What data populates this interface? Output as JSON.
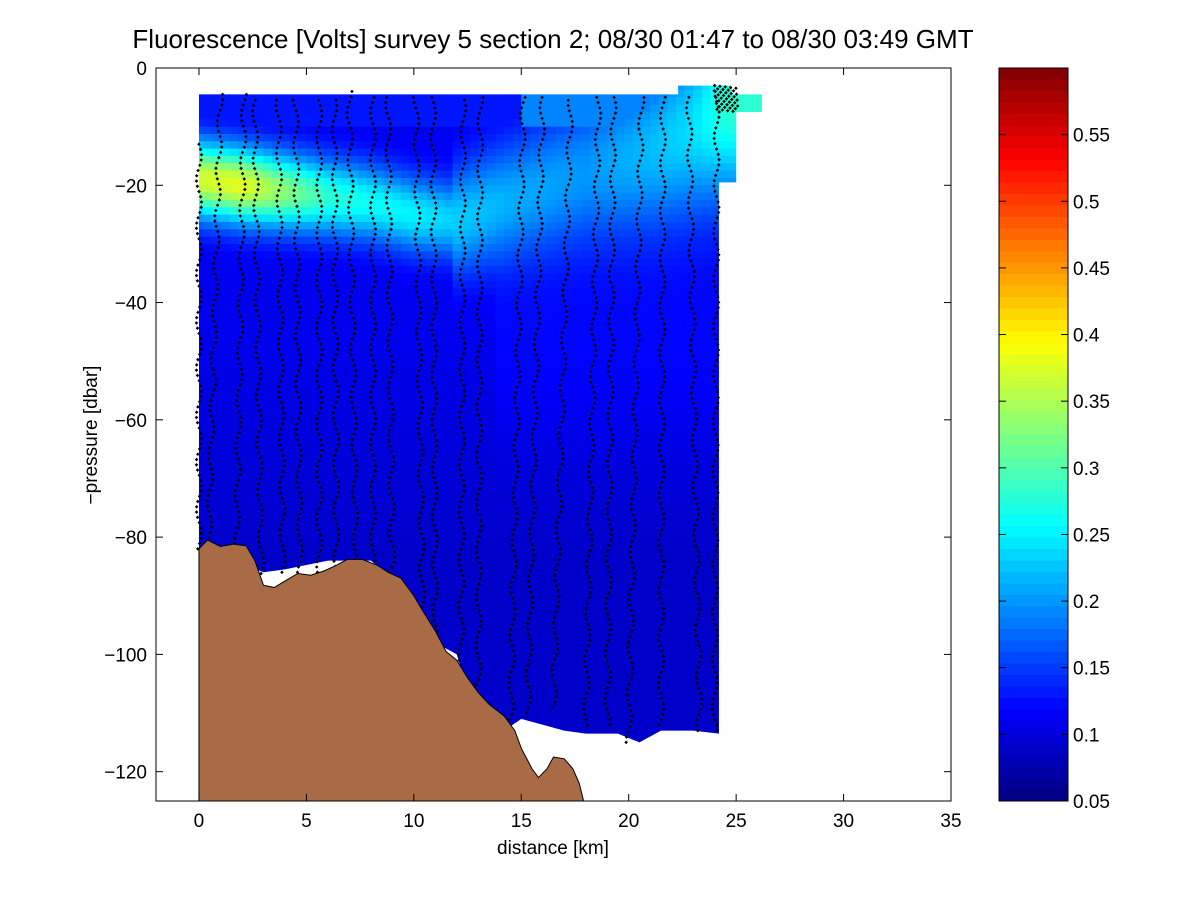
{
  "chart_data": {
    "type": "heatmap",
    "title": "Fluorescence [Volts] survey 5 section 2; 08/30 01:47 to 08/30 03:49 GMT",
    "xlabel": "distance [km]",
    "ylabel": "−pressure [dbar]",
    "xlim": [
      -2,
      35
    ],
    "ylim": [
      -125,
      0
    ],
    "x_ticks": [
      0,
      5,
      10,
      15,
      20,
      25,
      30,
      35
    ],
    "x_tick_labels": [
      "0",
      "5",
      "10",
      "15",
      "20",
      "25",
      "30",
      "35"
    ],
    "y_ticks": [
      0,
      -20,
      -40,
      -60,
      -80,
      -100,
      -120
    ],
    "y_tick_labels": [
      "0",
      "−20",
      "−40",
      "−60",
      "−80",
      "−100",
      "−120"
    ],
    "colorbar": {
      "colormap": "jet",
      "range": [
        0.05,
        0.6
      ],
      "ticks": [
        0.05,
        0.1,
        0.15,
        0.2,
        0.25,
        0.3,
        0.35,
        0.4,
        0.45,
        0.5,
        0.55
      ],
      "tick_labels": [
        "0.05",
        "0.1",
        "0.15",
        "0.2",
        "0.25",
        "0.3",
        "0.35",
        "0.4",
        "0.45",
        "0.5",
        "0.55"
      ]
    },
    "section_extent": {
      "x": [
        0,
        24.2
      ],
      "y_top": -4.5,
      "bottom_depth": [
        [
          0.3,
          -82
        ],
        [
          3.0,
          -86
        ],
        [
          4.0,
          -85.5
        ],
        [
          6.0,
          -84
        ],
        [
          8.0,
          -84
        ],
        [
          9.0,
          -87
        ],
        [
          9.5,
          -92
        ],
        [
          11.0,
          -98
        ],
        [
          12.0,
          -100
        ],
        [
          12.5,
          -106
        ],
        [
          13.5,
          -110
        ],
        [
          14.0,
          -113.5
        ],
        [
          15.0,
          -111
        ],
        [
          16.0,
          -112
        ],
        [
          17.0,
          -113
        ],
        [
          18.0,
          -113.5
        ],
        [
          19.5,
          -113.5
        ],
        [
          20.5,
          -115
        ],
        [
          21.5,
          -113
        ],
        [
          23.0,
          -113
        ],
        [
          24.2,
          -113.5
        ]
      ],
      "top_right_patch": {
        "x": [
          22.3,
          26.2
        ],
        "y": [
          -3,
          -19.5
        ]
      }
    },
    "field": {
      "background_value": 0.11,
      "deep_value": 0.09,
      "subsurface_max_layer": [
        [
          0,
          -19,
          0.37
        ],
        [
          2,
          -20,
          0.38
        ],
        [
          4,
          -21,
          0.33
        ],
        [
          6,
          -22,
          0.28
        ],
        [
          8,
          -23,
          0.26
        ],
        [
          10,
          -25,
          0.25
        ],
        [
          12,
          -26,
          0.23
        ],
        [
          15,
          -22,
          0.21
        ],
        [
          18,
          -18,
          0.2
        ],
        [
          21,
          -14,
          0.22
        ],
        [
          23,
          -10,
          0.24
        ],
        [
          24.5,
          -6,
          0.28
        ]
      ]
    },
    "bathymetry": {
      "fill_color": "#a86b46",
      "points": [
        [
          0,
          -125
        ],
        [
          0,
          -82
        ],
        [
          0.4,
          -80.5
        ],
        [
          1.0,
          -81.6
        ],
        [
          1.6,
          -81.2
        ],
        [
          2.2,
          -81.5
        ],
        [
          2.6,
          -84
        ],
        [
          3.0,
          -88.2
        ],
        [
          3.5,
          -88.6
        ],
        [
          4.0,
          -87.5
        ],
        [
          4.6,
          -86.2
        ],
        [
          5.2,
          -86.5
        ],
        [
          5.8,
          -85.8
        ],
        [
          6.4,
          -84.8
        ],
        [
          6.9,
          -83.8
        ],
        [
          7.6,
          -83.8
        ],
        [
          8.3,
          -84.8
        ],
        [
          8.8,
          -86
        ],
        [
          9.4,
          -87
        ],
        [
          10.0,
          -90
        ],
        [
          10.4,
          -92.5
        ],
        [
          11.0,
          -96
        ],
        [
          11.5,
          -99.5
        ],
        [
          12.0,
          -101
        ],
        [
          12.5,
          -104
        ],
        [
          13.0,
          -106.5
        ],
        [
          13.5,
          -108.5
        ],
        [
          14.2,
          -110.5
        ],
        [
          14.7,
          -113
        ],
        [
          15.0,
          -116
        ],
        [
          15.5,
          -119.5
        ],
        [
          15.8,
          -121
        ],
        [
          16.2,
          -119.5
        ],
        [
          16.5,
          -117.5
        ],
        [
          17.0,
          -117.8
        ],
        [
          17.4,
          -119.5
        ],
        [
          17.7,
          -122
        ],
        [
          17.9,
          -125
        ]
      ]
    },
    "profiles": {
      "marker_color": "#000000",
      "casts": [
        {
          "x_top": 0.0,
          "x_bottom": 0.0,
          "top": -13,
          "bottom": -82
        },
        {
          "x_top": 1.0,
          "x_bottom": 0.45,
          "top": -4.5,
          "bottom": -81
        },
        {
          "x_top": 2.1,
          "x_bottom": 1.75,
          "top": -4.5,
          "bottom": -82
        },
        {
          "x_top": 2.6,
          "x_bottom": 2.9,
          "top": -5.5,
          "bottom": -88
        },
        {
          "x_top": 3.7,
          "x_bottom": 3.9,
          "top": -5.5,
          "bottom": -86
        },
        {
          "x_top": 4.5,
          "x_bottom": 4.7,
          "top": -5.5,
          "bottom": -86
        },
        {
          "x_top": 5.6,
          "x_bottom": 5.6,
          "top": -5.5,
          "bottom": -86
        },
        {
          "x_top": 6.3,
          "x_bottom": 6.4,
          "top": -5.5,
          "bottom": -85
        },
        {
          "x_top": 7.0,
          "x_bottom": 7.3,
          "top": -4.0,
          "bottom": -84
        },
        {
          "x_top": 8.1,
          "x_bottom": 8.1,
          "top": -5.0,
          "bottom": -84
        },
        {
          "x_top": 8.8,
          "x_bottom": 9.0,
          "top": -5.0,
          "bottom": -87
        },
        {
          "x_top": 10.1,
          "x_bottom": 10.4,
          "top": -5.0,
          "bottom": -92
        },
        {
          "x_top": 10.9,
          "x_bottom": 11.0,
          "top": -5.0,
          "bottom": -96
        },
        {
          "x_top": 12.3,
          "x_bottom": 12.2,
          "top": -5.5,
          "bottom": -101
        },
        {
          "x_top": 13.1,
          "x_bottom": 13.0,
          "top": -5.0,
          "bottom": -107
        },
        {
          "x_top": 15.1,
          "x_bottom": 14.5,
          "top": -5.0,
          "bottom": -112
        },
        {
          "x_top": 16.0,
          "x_bottom": 15.3,
          "top": -5.0,
          "bottom": -110
        },
        {
          "x_top": 17.3,
          "x_bottom": 16.5,
          "top": -5.5,
          "bottom": -109
        },
        {
          "x_top": 18.6,
          "x_bottom": 18.0,
          "top": -5.0,
          "bottom": -112
        },
        {
          "x_top": 19.3,
          "x_bottom": 19.0,
          "top": -5.0,
          "bottom": -112
        },
        {
          "x_top": 20.6,
          "x_bottom": 20.0,
          "top": -5.0,
          "bottom": -115
        },
        {
          "x_top": 21.6,
          "x_bottom": 21.5,
          "top": -5.0,
          "bottom": -112
        },
        {
          "x_top": 22.8,
          "x_bottom": 23.3,
          "top": -5.0,
          "bottom": -113
        },
        {
          "x_top": 24.1,
          "x_bottom": 24.0,
          "top": -3.0,
          "bottom": -113
        }
      ],
      "cluster": {
        "x": [
          24.0,
          25.1
        ],
        "y": [
          -3.0,
          -7.5
        ]
      }
    }
  }
}
